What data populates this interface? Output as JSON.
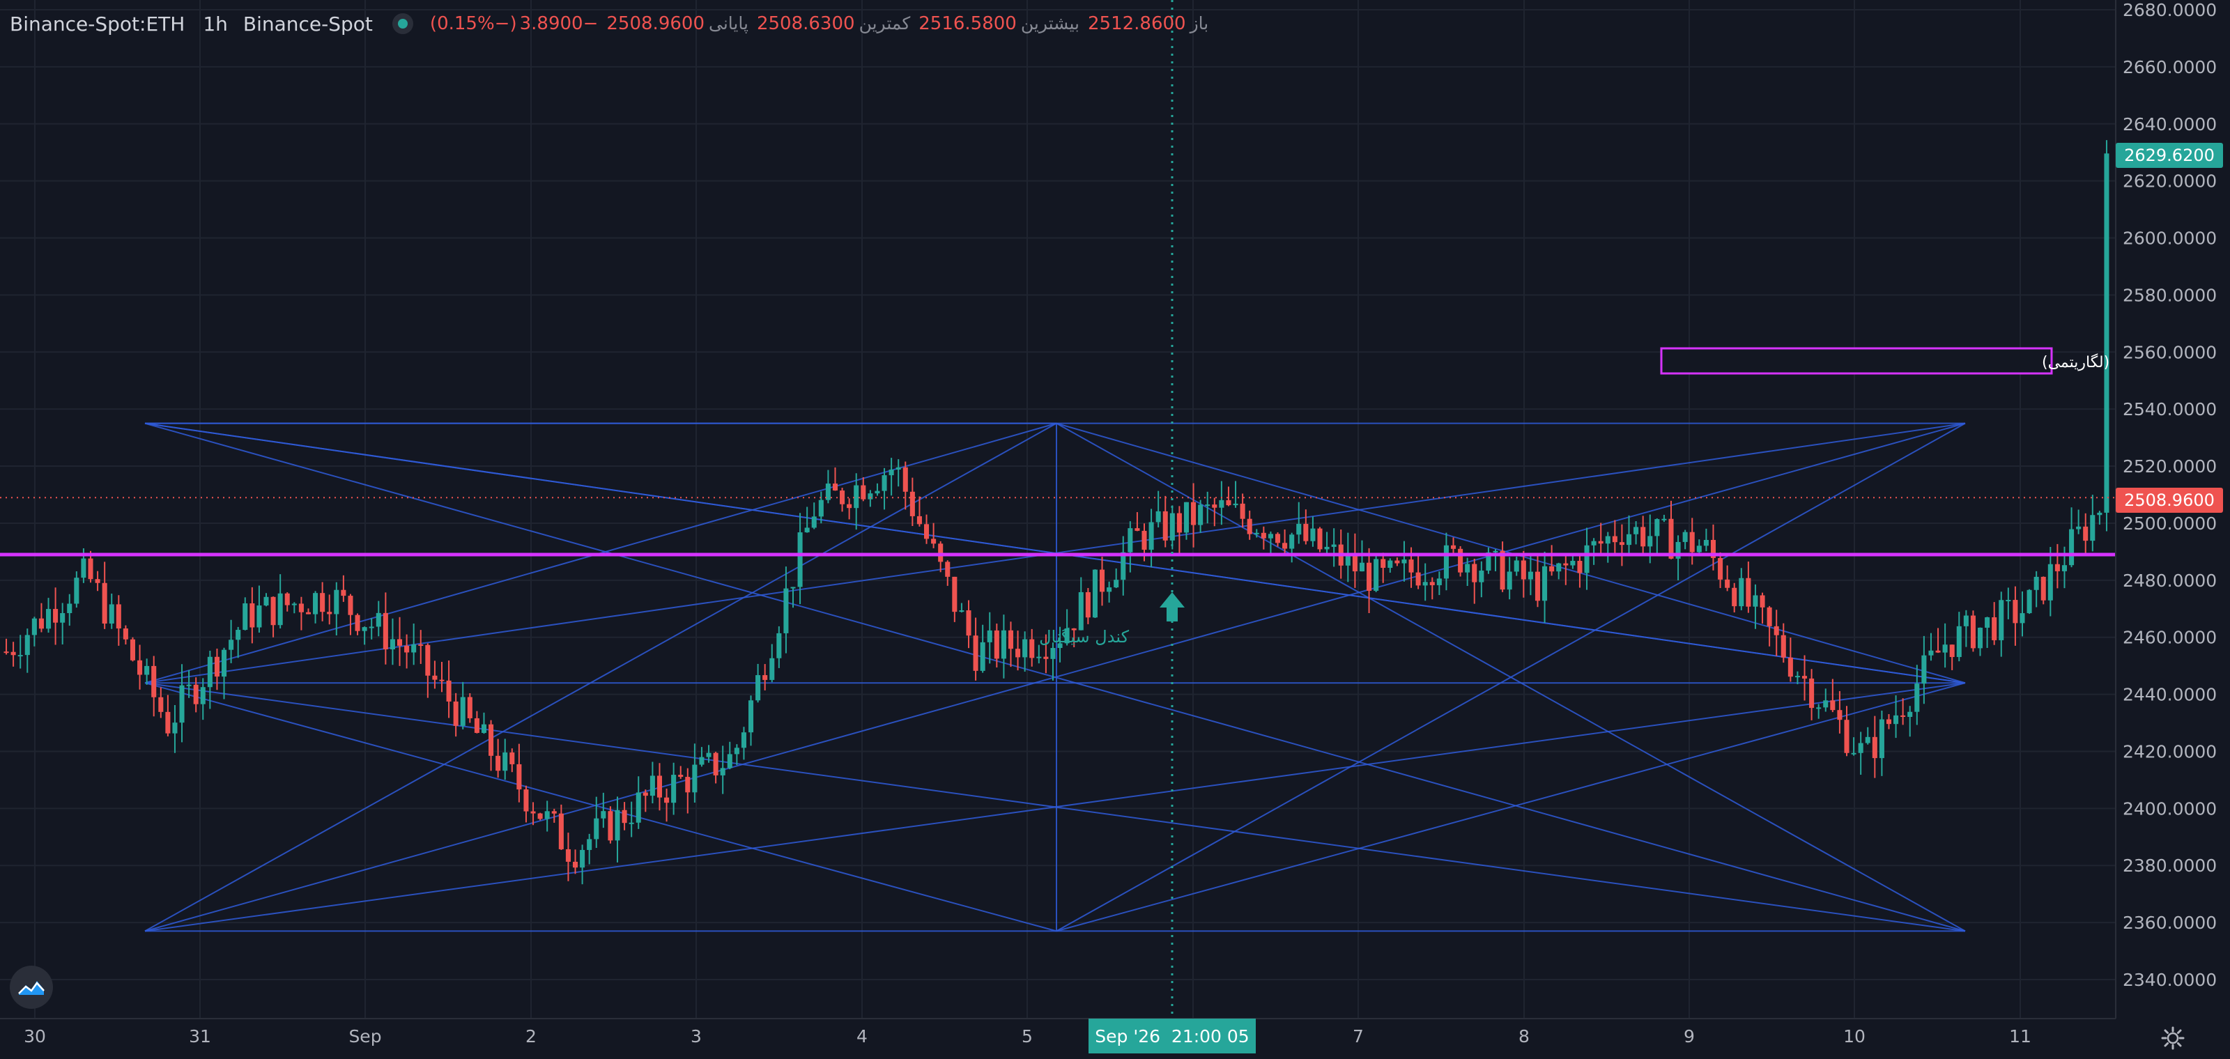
{
  "legend": {
    "symbol": "Binance-Spot:ETH",
    "timeframe": "1h",
    "exchange": "Binance-Spot",
    "open_label": "باز",
    "open_value": "2512.8600",
    "high_label": "بیشترین",
    "high_value": "2516.5800",
    "low_label": "کمترین",
    "low_value": "2508.6300",
    "close_label": "پایانی",
    "close_value": "2508.9600",
    "change": "−3.8900",
    "change_pct": "(−0.15%)"
  },
  "price_axis": {
    "ticks": [
      "2680.0000",
      "2660.0000",
      "2640.0000",
      "2620.0000",
      "2600.0000",
      "2580.0000",
      "2560.0000",
      "2540.0000",
      "2520.0000",
      "2500.0000",
      "2480.0000",
      "2460.0000",
      "2440.0000",
      "2420.0000",
      "2400.0000",
      "2380.0000",
      "2360.0000",
      "2340.0000"
    ],
    "current_price_label": "2629.6200",
    "hover_price_label": "2508.9600"
  },
  "time_axis": {
    "ticks": [
      "30",
      "31",
      "Sep",
      "2",
      "3",
      "4",
      "5",
      "6",
      "7",
      "8",
      "9",
      "10",
      "11"
    ],
    "crosshair_label": "Sep '26  21:00 05"
  },
  "annotations": {
    "box_text": "شکست صعودی سطح سه‌چهارم مربع زمان (لگاریتمی)",
    "marker_text": "کندل سیگنال"
  },
  "colors": {
    "background": "#131722",
    "up": "#26a69a",
    "down": "#ef5350",
    "level_line": "#d633ff",
    "pattern_lines": "#2f5bd8",
    "crosshair": "#26a69a",
    "text": "#d1d4dc"
  },
  "chart_data": {
    "type": "candlestick",
    "symbol": "Binance-Spot:ETH",
    "interval": "1h",
    "x_ticks": [
      "30",
      "31",
      "Sep",
      "2",
      "3",
      "4",
      "5",
      "6",
      "7",
      "8",
      "9",
      "10",
      "11"
    ],
    "y_range": [
      2340,
      2680
    ],
    "horizontal_level": 2489,
    "last_close": 2508.96,
    "current_price": 2629.62,
    "anchor_days": [
      {
        "day": "30",
        "close": 2455
      },
      {
        "day": "30 late",
        "close": 2482
      },
      {
        "day": "31",
        "close": 2430
      },
      {
        "day": "31 late",
        "close": 2468
      },
      {
        "day": "Sep",
        "close": 2475
      },
      {
        "day": "Sep late",
        "close": 2455
      },
      {
        "day": "2",
        "close": 2420
      },
      {
        "day": "2 late",
        "close": 2385
      },
      {
        "day": "3",
        "close": 2405
      },
      {
        "day": "3 late",
        "close": 2418
      },
      {
        "day": "4",
        "close": 2505
      },
      {
        "day": "4 late",
        "close": 2520
      },
      {
        "day": "5",
        "close": 2455
      },
      {
        "day": "5 late",
        "close": 2460
      },
      {
        "day": "6",
        "close": 2495
      },
      {
        "day": "6 late",
        "close": 2505
      },
      {
        "day": "7",
        "close": 2495
      },
      {
        "day": "7 late",
        "close": 2480
      },
      {
        "day": "8",
        "close": 2488
      },
      {
        "day": "8 late",
        "close": 2478
      },
      {
        "day": "9",
        "close": 2498
      },
      {
        "day": "9 late",
        "close": 2492
      },
      {
        "day": "10",
        "close": 2455
      },
      {
        "day": "10 late",
        "close": 2418
      },
      {
        "day": "11",
        "close": 2458
      },
      {
        "day": "11 late",
        "close": 2470
      },
      {
        "day": "last",
        "close": 2508.96
      }
    ]
  }
}
